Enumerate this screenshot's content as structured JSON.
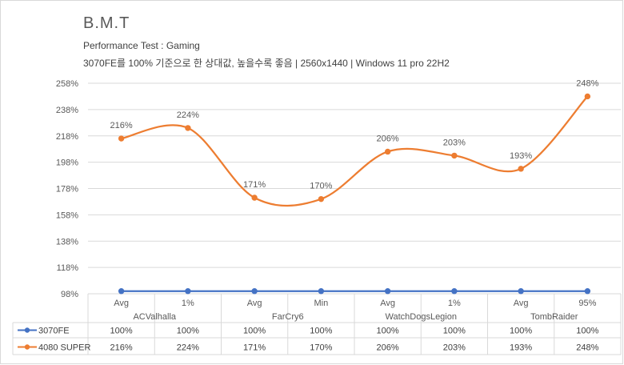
{
  "title": "B.M.T",
  "subtitle": "Performance Test : Gaming",
  "subtitle2": "3070FE를 100% 기준으로 한 상대값, 높을수록 좋음 | 2560x1440 | Windows 11 pro 22H2",
  "chart_data": {
    "type": "line",
    "title": "B.M.T",
    "yticks": [
      "258%",
      "238%",
      "218%",
      "198%",
      "178%",
      "158%",
      "138%",
      "118%",
      "98%"
    ],
    "ylim": [
      98,
      258
    ],
    "categories": [
      "Avg",
      "1%",
      "Avg",
      "Min",
      "Avg",
      "1%",
      "Avg",
      "95%"
    ],
    "groups": [
      {
        "name": "ACValhalla",
        "span": [
          0,
          1
        ]
      },
      {
        "name": "FarCry6",
        "span": [
          2,
          3
        ]
      },
      {
        "name": "WatchDogsLegion",
        "span": [
          4,
          5
        ]
      },
      {
        "name": "TombRaider",
        "span": [
          6,
          7
        ]
      }
    ],
    "series": [
      {
        "name": "3070FE",
        "color": "#4472c4",
        "values": [
          100,
          100,
          100,
          100,
          100,
          100,
          100,
          100
        ],
        "labels": [
          "100%",
          "100%",
          "100%",
          "100%",
          "100%",
          "100%",
          "100%",
          "100%"
        ],
        "show_data_labels": false
      },
      {
        "name": "4080 SUPER",
        "color": "#ed7d31",
        "values": [
          216,
          224,
          171,
          170,
          206,
          203,
          193,
          248
        ],
        "labels": [
          "216%",
          "224%",
          "171%",
          "170%",
          "206%",
          "203%",
          "193%",
          "248%"
        ],
        "show_data_labels": true
      }
    ],
    "grid": true,
    "data_table": true,
    "smooth": true
  }
}
